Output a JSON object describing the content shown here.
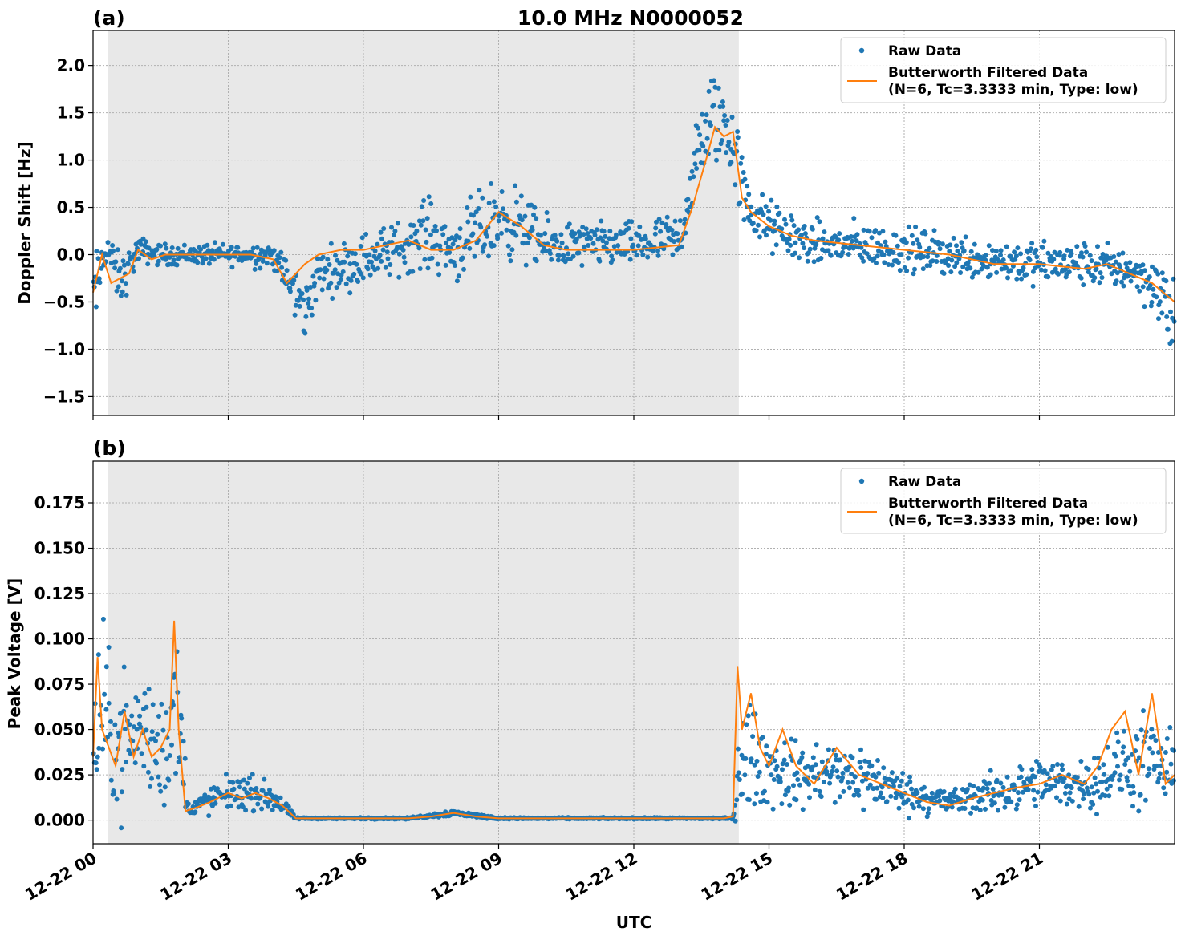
{
  "figure": {
    "title": "10.0 MHz N0000052",
    "xlabel": "UTC"
  },
  "legend": {
    "raw": "Raw Data",
    "filtered_line1": "Butterworth Filtered Data",
    "filtered_line2": "(N=6, Tc=3.3333 min, Type: low)"
  },
  "colors": {
    "raw": "#1f77b4",
    "filtered": "#ff7f0e",
    "shade": "#e8e8e8"
  },
  "chart_data": [
    {
      "panel": "(a)",
      "type": "scatter",
      "ylabel": "Doppler Shift [Hz]",
      "xlim_hours": [
        0,
        24
      ],
      "ylim": [
        -1.7,
        2.37
      ],
      "yticks": [
        2.0,
        1.5,
        1.0,
        0.5,
        0.0,
        -0.5,
        -1.0,
        -1.5
      ],
      "ytick_labels": [
        "2.0",
        "1.5",
        "1.0",
        "0.5",
        "0.0",
        "−0.5",
        "−1.0",
        "−1.5"
      ],
      "shaded_hours": [
        0.33,
        14.33
      ],
      "legend_position": "upper-right",
      "grid": true,
      "series": [
        {
          "name": "Raw Data",
          "kind": "points",
          "x": [
            0,
            0.3,
            0.6,
            1,
            1.5,
            2,
            3,
            4,
            4.7,
            5,
            6,
            7,
            7.3,
            8,
            8.5,
            9,
            9.5,
            10,
            11,
            12,
            13,
            13.5,
            13.8,
            14.2,
            14.5,
            15,
            16,
            17,
            18,
            19,
            20,
            21,
            22,
            23,
            23.5,
            24
          ],
          "y": [
            -0.5,
            0.1,
            -0.3,
            0.05,
            0.0,
            0.0,
            0.0,
            0.0,
            -0.6,
            -0.2,
            -0.05,
            0.1,
            0.25,
            0.05,
            0.2,
            0.4,
            0.3,
            0.1,
            0.1,
            0.1,
            0.15,
            1.2,
            1.5,
            1.2,
            0.5,
            0.3,
            0.1,
            0.1,
            0.05,
            0.0,
            -0.05,
            -0.1,
            -0.1,
            -0.15,
            -0.3,
            -0.7
          ],
          "spread": [
            0.5,
            0.2,
            0.3,
            0.15,
            0.12,
            0.12,
            0.12,
            0.15,
            0.35,
            0.25,
            0.3,
            0.3,
            0.4,
            0.35,
            0.45,
            0.45,
            0.4,
            0.3,
            0.25,
            0.25,
            0.3,
            0.5,
            0.6,
            0.5,
            0.35,
            0.3,
            0.25,
            0.25,
            0.25,
            0.25,
            0.25,
            0.25,
            0.25,
            0.25,
            0.3,
            0.6
          ]
        },
        {
          "name": "Butterworth Filtered Data\n(N=6, Tc=3.3333 min, Type: low)",
          "kind": "line",
          "x": [
            0,
            0.2,
            0.4,
            0.6,
            0.8,
            1.0,
            1.3,
            1.6,
            2.0,
            2.5,
            3.0,
            3.5,
            4.0,
            4.3,
            4.7,
            5.0,
            5.5,
            6.0,
            6.5,
            7.0,
            7.5,
            8.0,
            8.5,
            9.0,
            9.5,
            10.0,
            10.5,
            11.0,
            12.0,
            13.0,
            13.3,
            13.6,
            13.8,
            14.0,
            14.2,
            14.4,
            14.6,
            15.0,
            15.5,
            16.0,
            17.0,
            18.0,
            19.0,
            20.0,
            21.0,
            22.0,
            22.5,
            23.0,
            23.5,
            24.0
          ],
          "y": [
            -0.4,
            0.0,
            -0.3,
            -0.25,
            -0.2,
            0.05,
            -0.05,
            0.0,
            0.0,
            0.0,
            0.0,
            0.0,
            -0.05,
            -0.3,
            -0.1,
            0.0,
            0.05,
            0.05,
            0.1,
            0.15,
            0.05,
            0.05,
            0.15,
            0.45,
            0.3,
            0.1,
            0.05,
            0.05,
            0.05,
            0.1,
            0.5,
            1.0,
            1.35,
            1.25,
            1.3,
            0.6,
            0.45,
            0.3,
            0.2,
            0.15,
            0.1,
            0.05,
            0.0,
            -0.1,
            -0.1,
            -0.15,
            -0.1,
            -0.2,
            -0.3,
            -0.5
          ]
        }
      ]
    },
    {
      "panel": "(b)",
      "type": "scatter",
      "ylabel": "Peak Voltage [V]",
      "xlim_hours": [
        0,
        24
      ],
      "ylim": [
        -0.013,
        0.198
      ],
      "yticks": [
        0.175,
        0.15,
        0.125,
        0.1,
        0.075,
        0.05,
        0.025,
        0.0
      ],
      "ytick_labels": [
        "0.175",
        "0.150",
        "0.125",
        "0.100",
        "0.075",
        "0.050",
        "0.025",
        "0.000"
      ],
      "xtick_hours": [
        0,
        3,
        6,
        9,
        12,
        15,
        18,
        21
      ],
      "xtick_labels": [
        "12-22 00",
        "12-22 03",
        "12-22 06",
        "12-22 09",
        "12-22 12",
        "12-22 15",
        "12-22 18",
        "12-22 21"
      ],
      "shaded_hours": [
        0.33,
        14.33
      ],
      "legend_position": "upper-right",
      "grid": true,
      "series": [
        {
          "name": "Raw Data",
          "kind": "points",
          "x": [
            0,
            0.2,
            0.5,
            1,
            1.5,
            1.9,
            2.1,
            2.5,
            3,
            3.5,
            4,
            4.5,
            5,
            6,
            7,
            8,
            9,
            10,
            12,
            14,
            14.2,
            14.4,
            14.8,
            15.5,
            16,
            17,
            18,
            19,
            20,
            21,
            22,
            23,
            23.5,
            24
          ],
          "y": [
            0.04,
            0.06,
            0.04,
            0.05,
            0.04,
            0.06,
            0.006,
            0.01,
            0.015,
            0.015,
            0.012,
            0.001,
            0.001,
            0.001,
            0.001,
            0.004,
            0.001,
            0.001,
            0.001,
            0.001,
            0.001,
            0.04,
            0.03,
            0.025,
            0.025,
            0.025,
            0.015,
            0.01,
            0.015,
            0.02,
            0.02,
            0.03,
            0.03,
            0.025
          ],
          "spread": [
            0.04,
            0.05,
            0.04,
            0.04,
            0.04,
            0.05,
            0.004,
            0.008,
            0.01,
            0.01,
            0.008,
            0.0005,
            0.0005,
            0.0005,
            0.0005,
            0.002,
            0.0005,
            0.0005,
            0.0005,
            0.0005,
            0.0005,
            0.04,
            0.025,
            0.02,
            0.02,
            0.02,
            0.012,
            0.008,
            0.012,
            0.015,
            0.015,
            0.025,
            0.03,
            0.02
          ]
        },
        {
          "name": "Butterworth Filtered Data\n(N=6, Tc=3.3333 min, Type: low)",
          "kind": "line",
          "x": [
            0,
            0.1,
            0.2,
            0.35,
            0.5,
            0.7,
            0.9,
            1.1,
            1.3,
            1.5,
            1.7,
            1.8,
            1.9,
            2.0,
            2.05,
            2.3,
            2.6,
            3.0,
            3.3,
            3.6,
            3.9,
            4.2,
            4.5,
            5,
            6,
            7,
            7.5,
            8,
            8.5,
            9,
            10,
            12,
            14,
            14.2,
            14.3,
            14.4,
            14.6,
            14.8,
            15.0,
            15.3,
            15.6,
            16,
            16.5,
            17,
            17.5,
            18,
            18.5,
            19,
            19.5,
            20,
            20.5,
            21,
            21.5,
            22,
            22.3,
            22.6,
            22.9,
            23.2,
            23.5,
            23.8,
            24
          ],
          "y": [
            0.035,
            0.09,
            0.05,
            0.04,
            0.03,
            0.06,
            0.035,
            0.05,
            0.035,
            0.04,
            0.05,
            0.11,
            0.05,
            0.02,
            0.005,
            0.007,
            0.01,
            0.015,
            0.012,
            0.015,
            0.012,
            0.008,
            0.001,
            0.001,
            0.001,
            0.001,
            0.002,
            0.004,
            0.002,
            0.001,
            0.001,
            0.001,
            0.001,
            0.002,
            0.085,
            0.05,
            0.07,
            0.04,
            0.03,
            0.05,
            0.03,
            0.02,
            0.04,
            0.025,
            0.02,
            0.015,
            0.01,
            0.008,
            0.012,
            0.015,
            0.018,
            0.02,
            0.025,
            0.02,
            0.03,
            0.05,
            0.06,
            0.025,
            0.07,
            0.02,
            0.025
          ]
        }
      ]
    }
  ]
}
